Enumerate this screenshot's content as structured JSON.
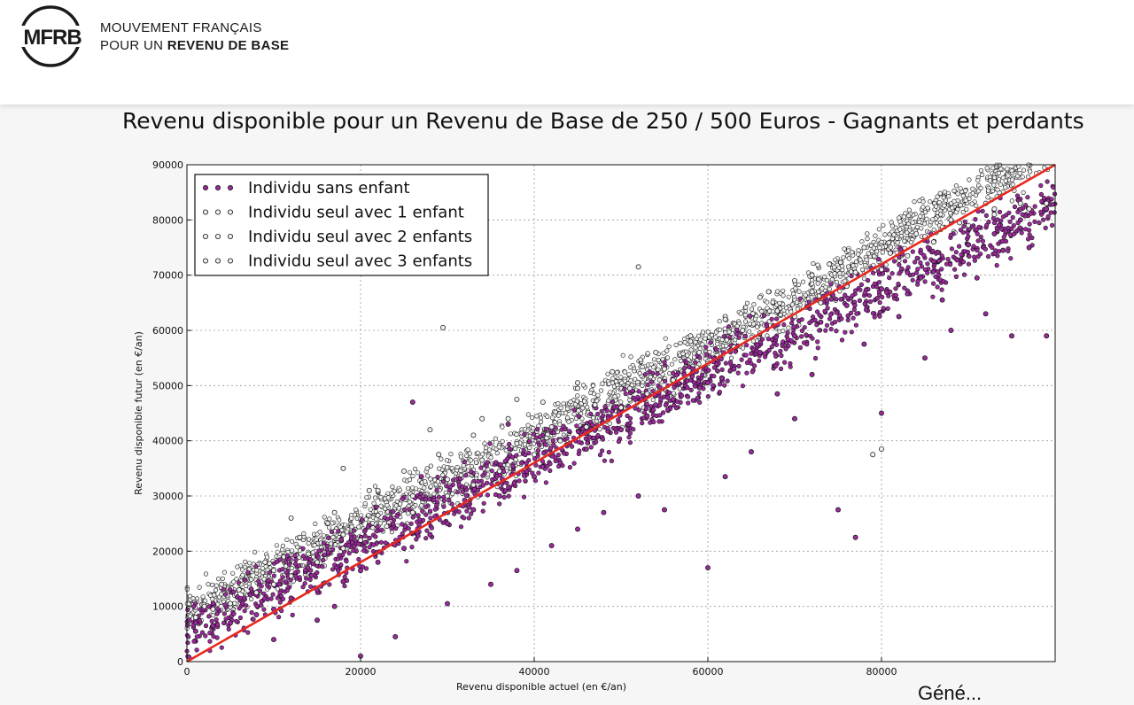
{
  "header": {
    "logo_text": "MFRB",
    "brand_line1": "MOUVEMENT FRANÇAIS",
    "brand_line2_prefix": "POUR UN ",
    "brand_line2_bold": "REVENU DE BASE"
  },
  "footer_fragment": "Géné...",
  "colors": {
    "purple": "#9c2a9c",
    "white_marker": "#f0f0f0",
    "red_line": "#e8281e"
  },
  "chart_data": {
    "type": "scatter",
    "title": "Revenu disponible pour un Revenu de Base de 250 / 500 Euros - Gagnants et perdants",
    "xlabel": "Revenu disponible actuel (en €/an)",
    "ylabel": "Revenu disponible futur (en €/an)",
    "xlim": [
      0,
      100000
    ],
    "ylim": [
      0,
      90000
    ],
    "xticks": [
      0,
      20000,
      40000,
      60000,
      80000
    ],
    "yticks": [
      0,
      10000,
      20000,
      30000,
      40000,
      50000,
      60000,
      70000,
      80000,
      90000
    ],
    "grid": true,
    "legend_position": "top-left",
    "reference_line": {
      "from": [
        0,
        0
      ],
      "to": [
        100000,
        90000
      ],
      "color": "#e8281e"
    },
    "series": [
      {
        "name": "Individu sans enfant",
        "color": "#9c2a9c",
        "points": [
          [
            1000,
            5500
          ],
          [
            3000,
            6500
          ],
          [
            5000,
            7000
          ],
          [
            8000,
            8500
          ],
          [
            10000,
            9500
          ],
          [
            12000,
            11500
          ],
          [
            15000,
            13000
          ],
          [
            18000,
            14500
          ],
          [
            20000,
            16500
          ],
          [
            22000,
            18000
          ],
          [
            25000,
            20500
          ],
          [
            28000,
            23000
          ],
          [
            30000,
            25000
          ],
          [
            33000,
            27500
          ],
          [
            36000,
            30000
          ],
          [
            40000,
            33500
          ],
          [
            43000,
            36000
          ],
          [
            46000,
            38500
          ],
          [
            50000,
            42000
          ],
          [
            53000,
            44500
          ],
          [
            56000,
            47500
          ],
          [
            60000,
            50500
          ],
          [
            63000,
            53000
          ],
          [
            66000,
            56000
          ],
          [
            70000,
            59000
          ],
          [
            73000,
            61500
          ],
          [
            76000,
            64500
          ],
          [
            80000,
            67500
          ],
          [
            83000,
            70500
          ],
          [
            86000,
            72500
          ],
          [
            90000,
            75500
          ],
          [
            93000,
            77500
          ],
          [
            96000,
            80000
          ],
          [
            99000,
            82000
          ],
          [
            15000,
            7500
          ],
          [
            20000,
            1000
          ],
          [
            24000,
            4500
          ],
          [
            30000,
            10500
          ],
          [
            35000,
            14000
          ],
          [
            38000,
            16500
          ],
          [
            42000,
            21000
          ],
          [
            45000,
            24000
          ],
          [
            48000,
            27000
          ],
          [
            52000,
            30000
          ],
          [
            55000,
            27500
          ],
          [
            60000,
            17000
          ],
          [
            65000,
            38000
          ],
          [
            70000,
            44000
          ],
          [
            75000,
            27500
          ],
          [
            77000,
            22500
          ],
          [
            80000,
            45000
          ],
          [
            85000,
            55000
          ],
          [
            88000,
            60000
          ],
          [
            92000,
            63000
          ],
          [
            95000,
            59000
          ],
          [
            99000,
            59000
          ],
          [
            10000,
            4000
          ],
          [
            17000,
            10000
          ],
          [
            26000,
            47000
          ],
          [
            27000,
            33500
          ],
          [
            37000,
            43000
          ],
          [
            54000,
            46500
          ],
          [
            62000,
            33500
          ],
          [
            68000,
            48500
          ],
          [
            72000,
            52000
          ],
          [
            78000,
            57500
          ],
          [
            82000,
            62500
          ],
          [
            87000,
            65500
          ],
          [
            91000,
            69500
          ],
          [
            94000,
            74500
          ],
          [
            97000,
            75000
          ]
        ]
      },
      {
        "name": "Individu seul avec 1 enfant",
        "color": "#f0f0f0",
        "points": [
          [
            1000,
            8000
          ],
          [
            3000,
            9500
          ],
          [
            5000,
            10500
          ],
          [
            8000,
            12500
          ],
          [
            10000,
            14000
          ],
          [
            12000,
            15500
          ],
          [
            15000,
            18000
          ],
          [
            18000,
            20500
          ],
          [
            20000,
            22000
          ],
          [
            23000,
            24500
          ],
          [
            26000,
            27000
          ],
          [
            30000,
            30000
          ],
          [
            33000,
            32000
          ],
          [
            36000,
            34500
          ],
          [
            40000,
            37500
          ],
          [
            43000,
            40000
          ],
          [
            46000,
            42500
          ],
          [
            50000,
            46000
          ],
          [
            53000,
            48500
          ],
          [
            56000,
            51000
          ],
          [
            60000,
            54000
          ],
          [
            63000,
            57000
          ],
          [
            66000,
            59500
          ],
          [
            70000,
            62500
          ],
          [
            73000,
            65000
          ],
          [
            76000,
            68000
          ],
          [
            80000,
            71000
          ],
          [
            83000,
            73500
          ],
          [
            86000,
            76000
          ],
          [
            90000,
            79000
          ],
          [
            93000,
            81000
          ],
          [
            96000,
            83000
          ],
          [
            99000,
            83000
          ],
          [
            12000,
            26000
          ],
          [
            18000,
            35000
          ],
          [
            22000,
            31000
          ],
          [
            28000,
            42000
          ],
          [
            34000,
            44000
          ],
          [
            38000,
            47500
          ],
          [
            45000,
            50500
          ],
          [
            52000,
            71500
          ],
          [
            58000,
            58000
          ],
          [
            62000,
            62000
          ],
          [
            67000,
            67000
          ],
          [
            72000,
            70000
          ],
          [
            79000,
            37500
          ],
          [
            80000,
            38500
          ]
        ]
      },
      {
        "name": "Individu seul avec 2 enfants",
        "color": "#f0f0f0",
        "points": [
          [
            2000,
            10000
          ],
          [
            6000,
            13000
          ],
          [
            10000,
            16500
          ],
          [
            14000,
            19500
          ],
          [
            18000,
            23000
          ],
          [
            22000,
            26500
          ],
          [
            26000,
            30000
          ],
          [
            30000,
            33000
          ],
          [
            29500,
            60500
          ],
          [
            34000,
            36500
          ],
          [
            38000,
            39500
          ],
          [
            42000,
            42500
          ],
          [
            47000,
            46500
          ],
          [
            51000,
            49500
          ],
          [
            55000,
            53000
          ],
          [
            59000,
            56000
          ],
          [
            64000,
            60000
          ],
          [
            68000,
            63500
          ],
          [
            72000,
            67000
          ],
          [
            77000,
            70500
          ],
          [
            81000,
            74000
          ],
          [
            85000,
            77000
          ],
          [
            89000,
            79500
          ],
          [
            93000,
            82000
          ],
          [
            97000,
            82000
          ]
        ]
      },
      {
        "name": "Individu seul avec 3 enfants",
        "color": "#f0f0f0",
        "points": [
          [
            4000,
            14000
          ],
          [
            9000,
            18000
          ],
          [
            13000,
            22500
          ],
          [
            17000,
            27000
          ],
          [
            21000,
            31000
          ],
          [
            25000,
            34500
          ],
          [
            29000,
            37500
          ],
          [
            33000,
            41000
          ],
          [
            37000,
            44000
          ],
          [
            41000,
            47000
          ],
          [
            45000,
            49500
          ],
          [
            49000,
            52500
          ],
          [
            54000,
            56000
          ],
          [
            58000,
            59000
          ],
          [
            62000,
            62500
          ],
          [
            66000,
            66000
          ],
          [
            70000,
            69000
          ],
          [
            74000,
            72000
          ],
          [
            78000,
            75000
          ],
          [
            84000,
            77500
          ],
          [
            88000,
            80000
          ],
          [
            92000,
            83000
          ]
        ]
      }
    ]
  }
}
